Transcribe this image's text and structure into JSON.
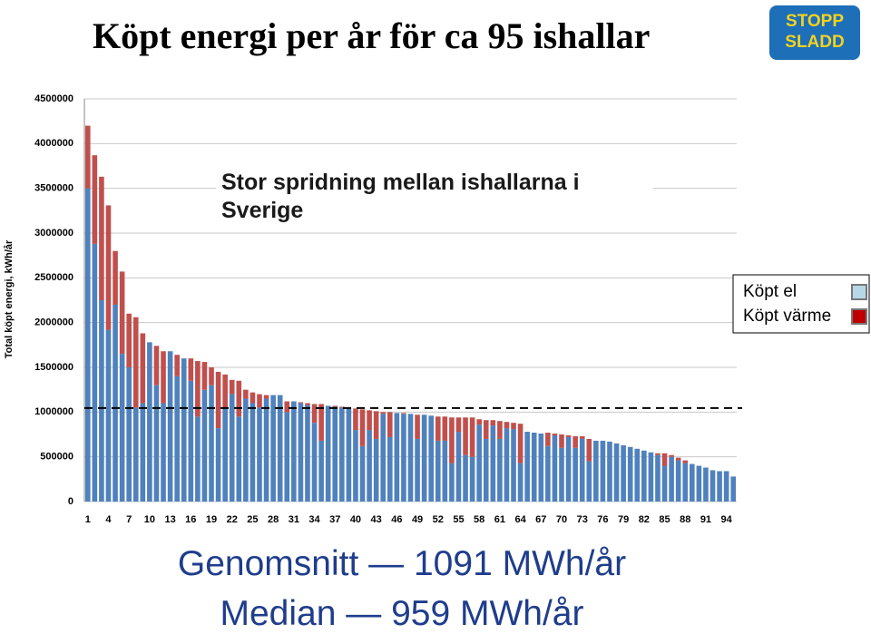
{
  "title": "Köpt energi per år för ca 95 ishallar",
  "logo": {
    "line1": "STOPP",
    "line2": "SLADD"
  },
  "footer": {
    "mean": "Genomsnitt — 1091 MWh/år",
    "median": "Median — 959 MWh/år"
  },
  "chart_data": {
    "type": "stacked_bar",
    "ylabel": "Total köpt energi, kWh/år",
    "annotation": "Stor spridning mellan ishallarna i Sverige",
    "legend": "right",
    "grid": true,
    "ylim": [
      0,
      4500000
    ],
    "yticks": [
      0,
      500000,
      1000000,
      1500000,
      2000000,
      2500000,
      3000000,
      3500000,
      4000000,
      4500000
    ],
    "reference_line": 1045000,
    "categories": [
      1,
      null,
      null,
      4,
      null,
      null,
      7,
      null,
      null,
      10,
      null,
      null,
      13,
      null,
      null,
      16,
      null,
      null,
      19,
      null,
      null,
      22,
      null,
      null,
      25,
      null,
      null,
      28,
      null,
      null,
      31,
      null,
      null,
      34,
      null,
      null,
      37,
      null,
      null,
      40,
      null,
      null,
      43,
      null,
      null,
      46,
      null,
      null,
      49,
      null,
      null,
      52,
      null,
      null,
      55,
      null,
      null,
      58,
      null,
      null,
      61,
      null,
      null,
      64,
      null,
      null,
      67,
      null,
      null,
      70,
      null,
      null,
      73,
      null,
      null,
      76,
      null,
      null,
      79,
      null,
      null,
      82,
      null,
      null,
      85,
      null,
      null,
      88,
      null,
      null,
      91,
      null,
      null,
      94,
      null
    ],
    "series": [
      {
        "name": "Köpt el",
        "color": "#4f81bd",
        "legend_color": "#b7d7e8",
        "values": [
          3500000,
          2880000,
          2250000,
          1920000,
          2200000,
          1650000,
          1500000,
          1050000,
          1100000,
          1780000,
          1300000,
          1100000,
          1680000,
          1400000,
          1600000,
          1350000,
          950000,
          1250000,
          1300000,
          820000,
          1050000,
          1200000,
          950000,
          1150000,
          1100000,
          1050000,
          1150000,
          1190000,
          1190000,
          1000000,
          1120000,
          1100000,
          1080000,
          880000,
          680000,
          1070000,
          1060000,
          1050000,
          1040000,
          800000,
          620000,
          800000,
          700000,
          980000,
          720000,
          990000,
          980000,
          980000,
          700000,
          970000,
          960000,
          680000,
          680000,
          430000,
          780000,
          520000,
          500000,
          860000,
          700000,
          850000,
          700000,
          820000,
          810000,
          430000,
          780000,
          770000,
          760000,
          620000,
          740000,
          600000,
          720000,
          600000,
          700000,
          450000,
          680000,
          680000,
          670000,
          650000,
          630000,
          610000,
          590000,
          570000,
          550000,
          520000,
          400000,
          500000,
          460000,
          430000,
          420000,
          400000,
          380000,
          350000,
          340000,
          340000,
          280000
        ]
      },
      {
        "name": "Köpt värme",
        "color": "#c0504d",
        "legend_color": "#c00000",
        "values": [
          700000,
          990000,
          1380000,
          1390000,
          600000,
          920000,
          600000,
          1010000,
          780000,
          0,
          440000,
          580000,
          0,
          240000,
          0,
          250000,
          620000,
          310000,
          200000,
          630000,
          370000,
          160000,
          400000,
          100000,
          120000,
          150000,
          40000,
          0,
          0,
          120000,
          0,
          10000,
          20000,
          210000,
          410000,
          0,
          10000,
          10000,
          10000,
          240000,
          410000,
          220000,
          310000,
          20000,
          280000,
          0,
          10000,
          0,
          270000,
          0,
          0,
          270000,
          270000,
          510000,
          160000,
          420000,
          440000,
          60000,
          210000,
          60000,
          200000,
          70000,
          70000,
          440000,
          0,
          0,
          0,
          150000,
          20000,
          150000,
          20000,
          130000,
          30000,
          250000,
          0,
          0,
          0,
          0,
          0,
          0,
          0,
          0,
          0,
          20000,
          140000,
          20000,
          30000,
          30000,
          0,
          0,
          0,
          0,
          0,
          0,
          0
        ]
      }
    ]
  }
}
